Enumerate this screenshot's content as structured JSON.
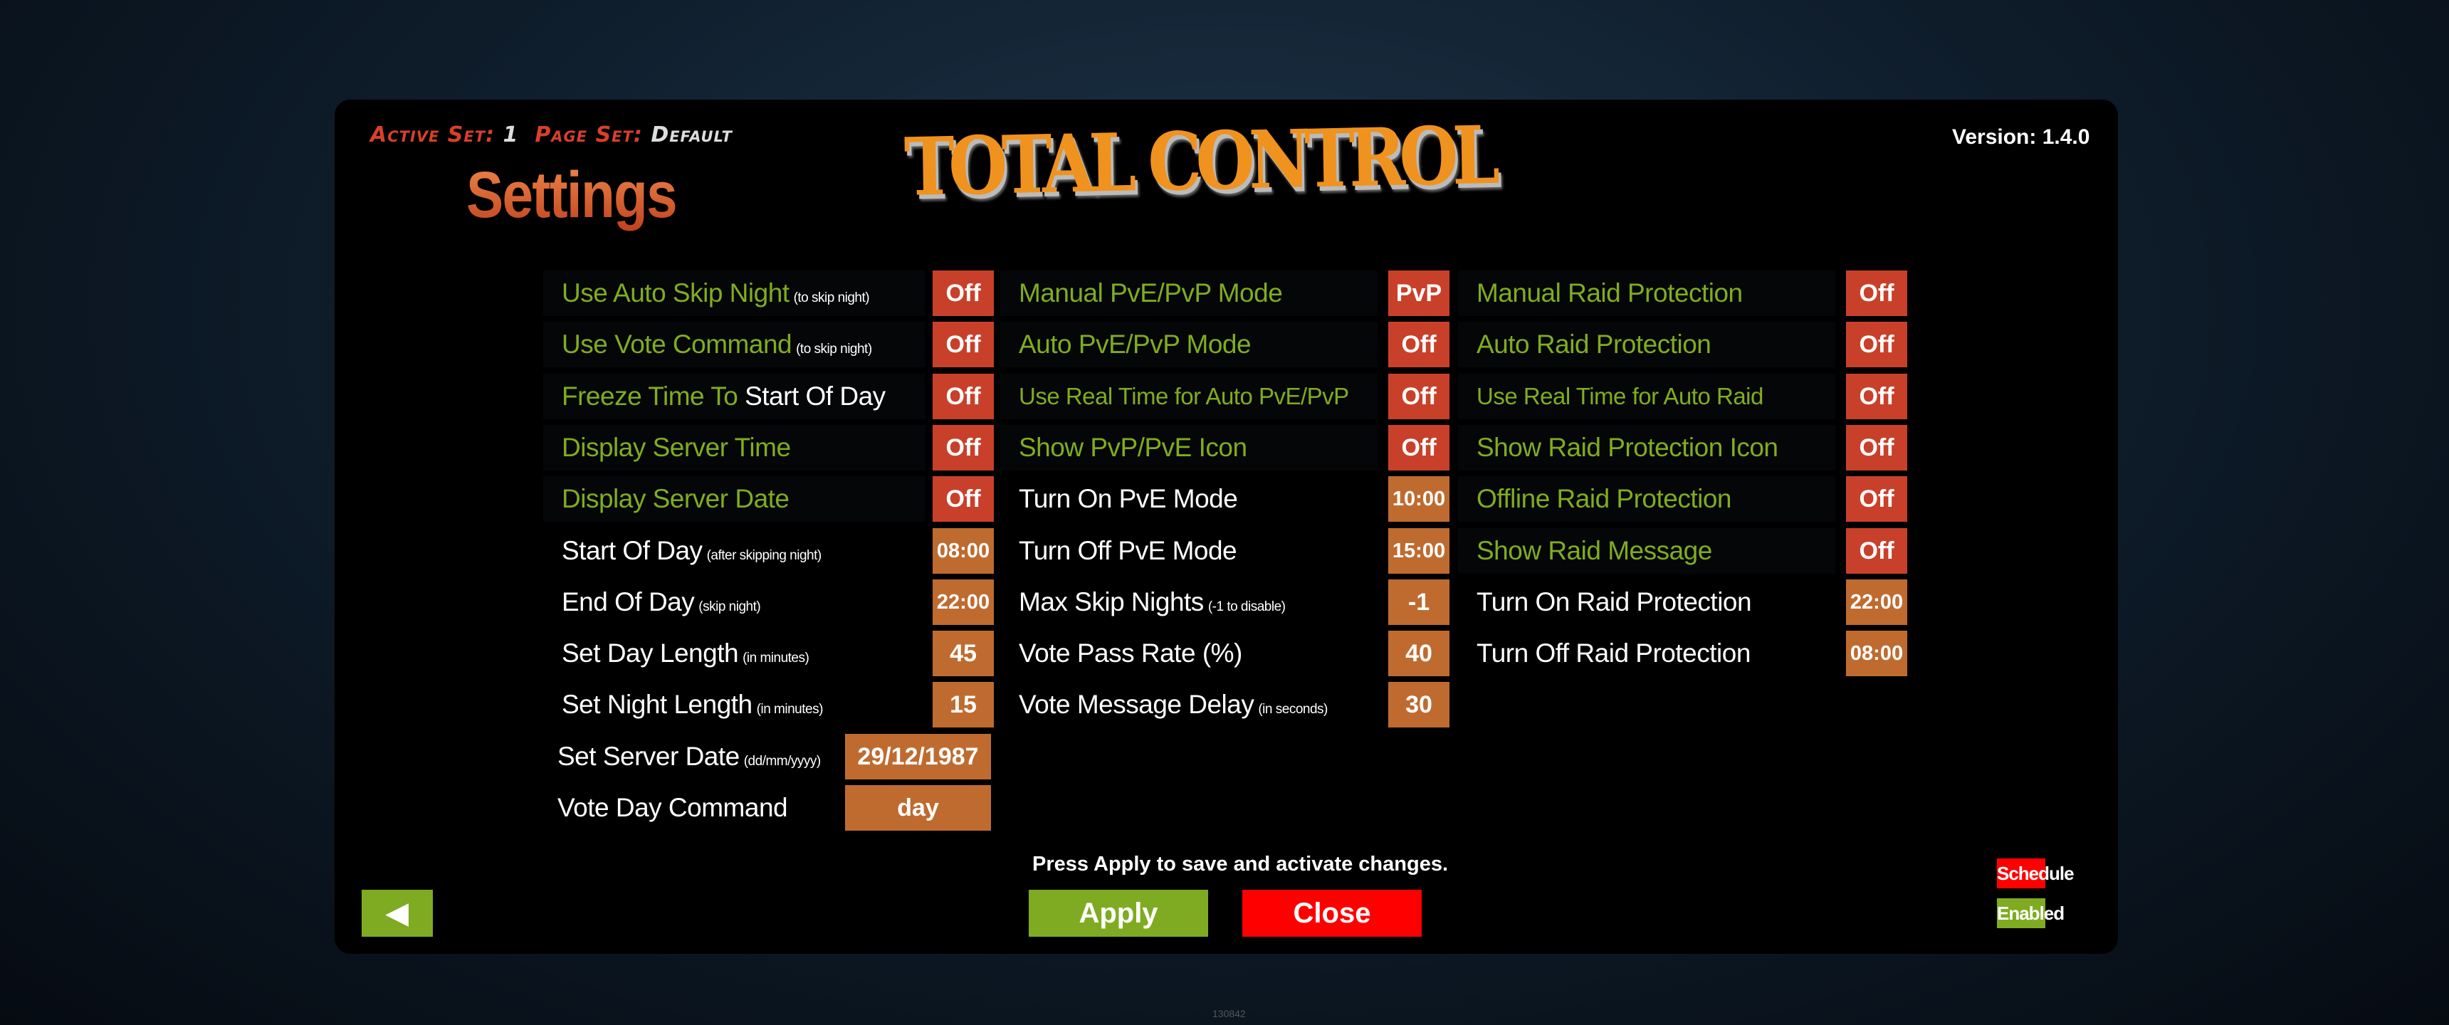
{
  "header": {
    "active_set_label": "Active Set:",
    "active_set_value": "1",
    "page_set_label": "Page Set:",
    "page_set_value": "Default",
    "title": "Settings",
    "logo_text": "TOTAL CONTROL",
    "version": "Version: 1.4.0"
  },
  "colors": {
    "green_text": "#7fad1f",
    "toggle_red": "#c9402a",
    "value_orange": "#bf6b30",
    "apply_green": "#7fab22",
    "close_red": "#ff0000"
  },
  "columns": [
    [
      {
        "label": "Use Auto Skip Night",
        "note": "(to skip night)",
        "green": true,
        "value": "Off",
        "kind": "toggle"
      },
      {
        "label": "Use Vote Command",
        "note": "(to skip night)",
        "green": true,
        "value": "Off",
        "kind": "toggle"
      },
      {
        "label": "Freeze Time To",
        "label2": "Start Of Day",
        "green": true,
        "value": "Off",
        "kind": "toggle"
      },
      {
        "label": "Display Server Time",
        "green": true,
        "value": "Off",
        "kind": "toggle"
      },
      {
        "label": "Display Server Date",
        "green": true,
        "value": "Off",
        "kind": "toggle"
      },
      {
        "label": "Start Of Day",
        "note": "(after skipping night)",
        "value": "08:00",
        "kind": "value"
      },
      {
        "label": "End Of Day",
        "note": "(skip night)",
        "value": "22:00",
        "kind": "value"
      },
      {
        "label": "Set Day Length",
        "note": "(in minutes)",
        "value": "45",
        "kind": "value"
      },
      {
        "label": "Set Night Length",
        "note": "(in minutes)",
        "value": "15",
        "kind": "value"
      },
      {
        "label": "Set Server Date",
        "note": "(dd/mm/yyyy)",
        "value": "29/12/1987",
        "kind": "wide"
      },
      {
        "label": "Vote Day Command",
        "value": "day",
        "kind": "wide"
      }
    ],
    [
      {
        "label": "Manual PvE/PvP Mode",
        "green": true,
        "value": "PvP",
        "kind": "toggle"
      },
      {
        "label": "Auto PvE/PvP Mode",
        "green": true,
        "value": "Off",
        "kind": "toggle"
      },
      {
        "label": "Use Real Time for Auto PvE/PvP",
        "green": true,
        "small": true,
        "value": "Off",
        "kind": "toggle"
      },
      {
        "label": "Show PvP/PvE Icon",
        "green": true,
        "value": "Off",
        "kind": "toggle"
      },
      {
        "label": "Turn On PvE Mode",
        "value": "10:00",
        "kind": "value"
      },
      {
        "label": "Turn Off PvE Mode",
        "value": "15:00",
        "kind": "value"
      },
      {
        "label": "Max Skip Nights",
        "note": "(-1 to disable)",
        "value": "-1",
        "kind": "value"
      },
      {
        "label": "Vote Pass Rate (%)",
        "value": "40",
        "kind": "value"
      },
      {
        "label": "Vote Message Delay",
        "note": "(in seconds)",
        "value": "30",
        "kind": "value"
      }
    ],
    [
      {
        "label": "Manual Raid Protection",
        "green": true,
        "value": "Off",
        "kind": "toggle"
      },
      {
        "label": "Auto Raid Protection",
        "green": true,
        "value": "Off",
        "kind": "toggle"
      },
      {
        "label": "Use Real Time for Auto Raid",
        "green": true,
        "small": true,
        "value": "Off",
        "kind": "toggle"
      },
      {
        "label": "Show Raid Protection Icon",
        "green": true,
        "value": "Off",
        "kind": "toggle"
      },
      {
        "label": "Offline Raid Protection",
        "green": true,
        "value": "Off",
        "kind": "toggle"
      },
      {
        "label": "Show Raid Message",
        "green": true,
        "value": "Off",
        "kind": "toggle"
      },
      {
        "label": "Turn On Raid Protection",
        "value": "22:00",
        "kind": "value"
      },
      {
        "label": "Turn Off Raid Protection",
        "value": "08:00",
        "kind": "value"
      }
    ]
  ],
  "footer": {
    "instruction": "Press Apply to save and activate changes.",
    "back_icon": "triangle-left-icon",
    "back_glyph": "◀",
    "apply": "Apply",
    "close": "Close",
    "schedule": "Schedule",
    "enabled": "Enabled",
    "build": "130842"
  }
}
